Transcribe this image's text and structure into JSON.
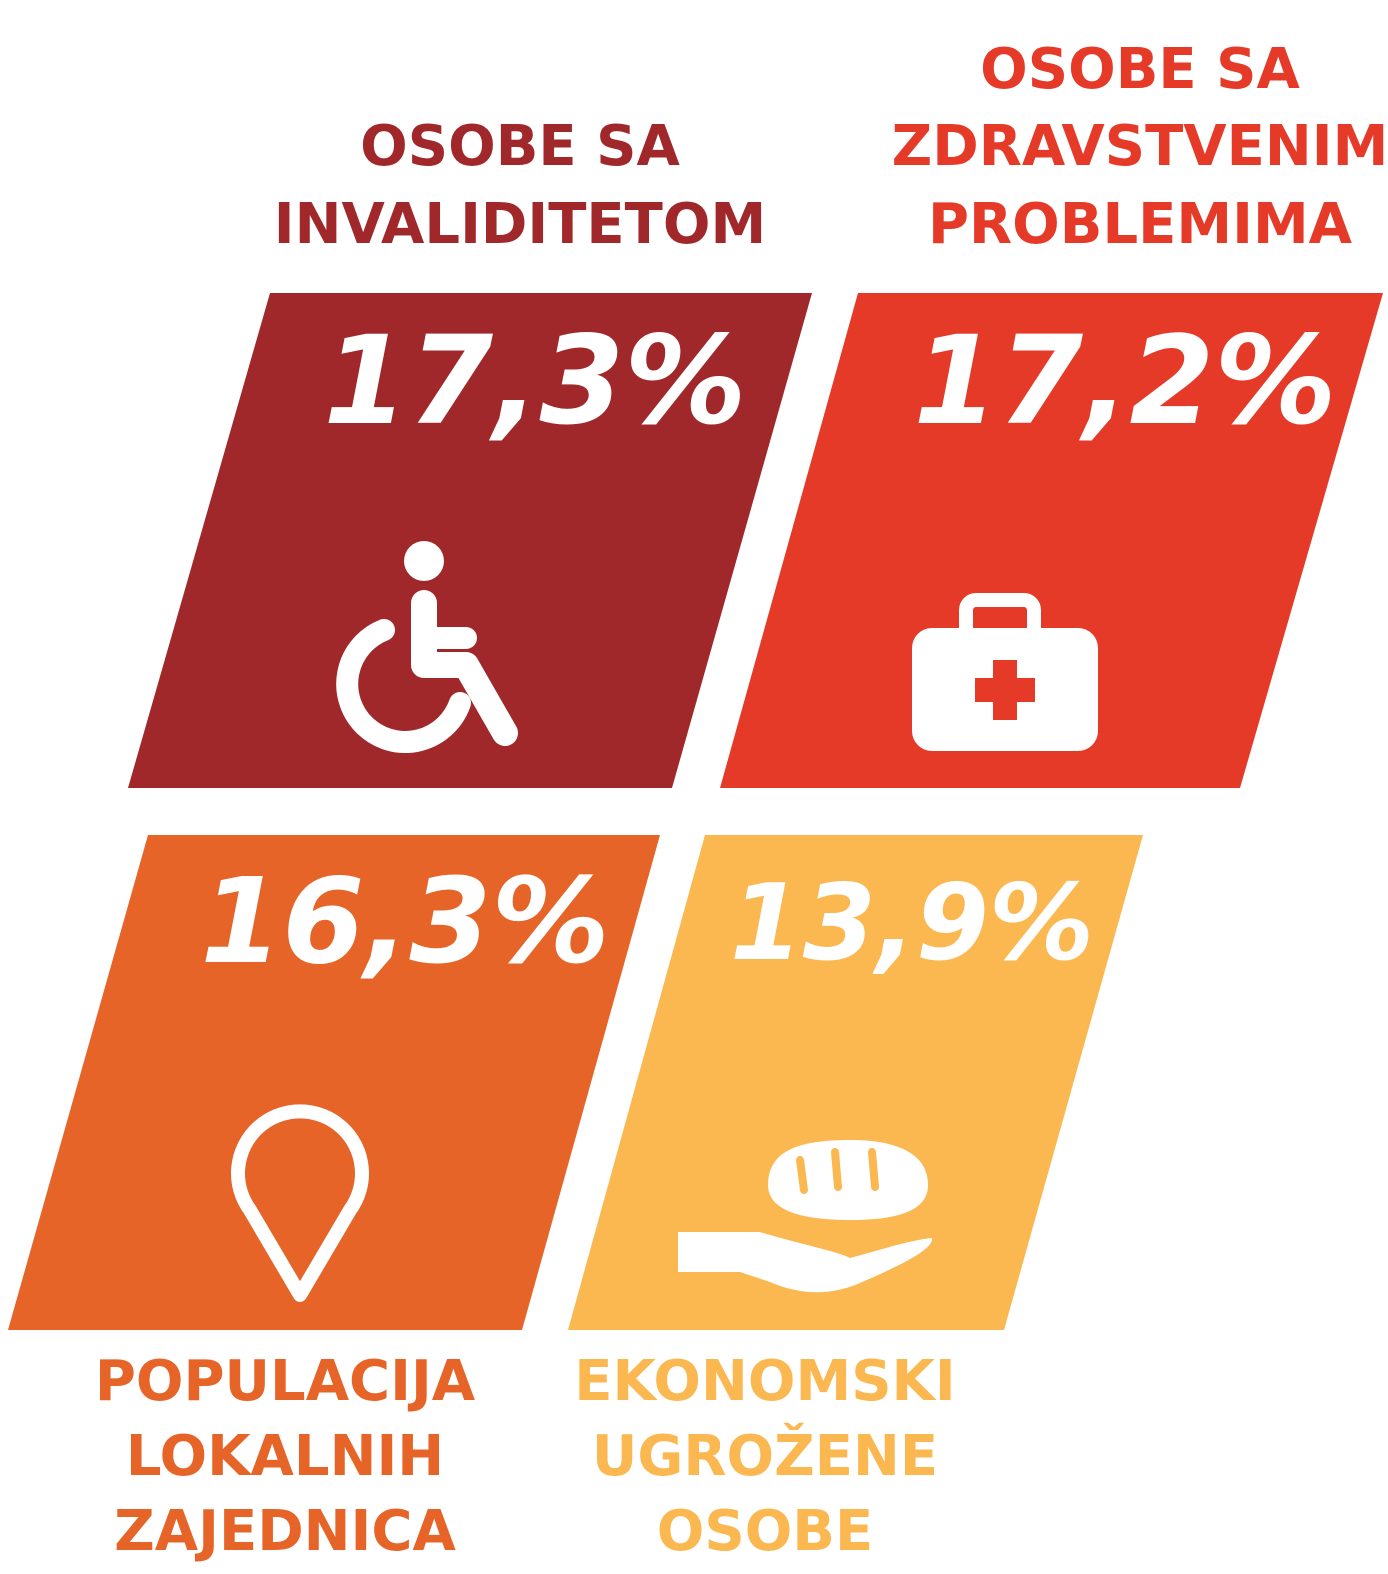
{
  "tiles": [
    {
      "label": [
        "OSOBE SA",
        "INVALIDITETOM"
      ],
      "value": "17,3%",
      "color": "#a0282a"
    },
    {
      "label": [
        "OSOBE SA",
        "ZDRAVSTVENIM",
        "PROBLEMIMA"
      ],
      "value": "17,2%",
      "color": "#e63a29"
    },
    {
      "label": [
        "POPULACIJA",
        "LOKALNIH",
        "ZAJEDNICA"
      ],
      "value": "16,3%",
      "color": "#e66428"
    },
    {
      "label": [
        "EKONOMSKI",
        "UGROŽENE",
        "OSOBE"
      ],
      "value": "13,9%",
      "color": "#fbb750"
    }
  ]
}
